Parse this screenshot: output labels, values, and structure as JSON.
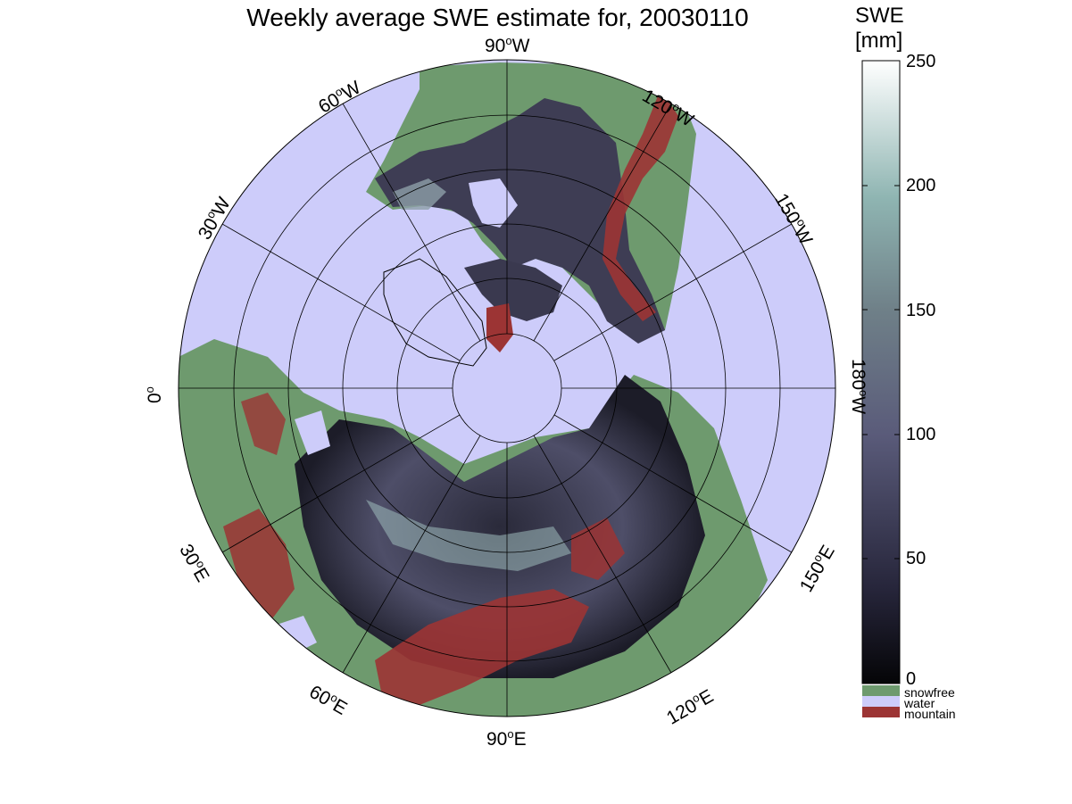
{
  "title": "Weekly average SWE estimate for, 20030110",
  "longitude_labels": [
    {
      "id": "90W",
      "deg": "90",
      "dir": "W"
    },
    {
      "id": "120W",
      "deg": "120",
      "dir": "W"
    },
    {
      "id": "150W",
      "deg": "150",
      "dir": "W"
    },
    {
      "id": "180W",
      "deg": "180",
      "dir": "W"
    },
    {
      "id": "150E",
      "deg": "150",
      "dir": "E"
    },
    {
      "id": "120E",
      "deg": "120",
      "dir": "E"
    },
    {
      "id": "90E",
      "deg": "90",
      "dir": "E"
    },
    {
      "id": "60E",
      "deg": "60",
      "dir": "E"
    },
    {
      "id": "30E",
      "deg": "30",
      "dir": "E"
    },
    {
      "id": "0",
      "deg": "0",
      "dir": ""
    },
    {
      "id": "30W",
      "deg": "30",
      "dir": "W"
    },
    {
      "id": "60W",
      "deg": "60",
      "dir": "W"
    }
  ],
  "colorbar": {
    "label_line1": "SWE",
    "label_line2": "[mm]",
    "ticks": [
      "250",
      "200",
      "150",
      "100",
      "50",
      "0"
    ],
    "range": [
      0,
      250
    ],
    "colors": {
      "low": "#050507",
      "mid": "#5a5b7a",
      "teal": "#8fb5b2",
      "high": "#ffffff"
    }
  },
  "legend": [
    {
      "label": "snowfree",
      "color": "#6e9a6e"
    },
    {
      "label": "water",
      "color": "#cdccfa"
    },
    {
      "label": "mountain",
      "color": "#9c3434"
    }
  ],
  "colors": {
    "water": "#cdccfa",
    "snowfree": "#6e9a6e",
    "mountain": "#9c3434",
    "snow_dark": "#2d2c3c",
    "snow_mid": "#6a6a86",
    "snow_light": "#a7c6c3"
  }
}
